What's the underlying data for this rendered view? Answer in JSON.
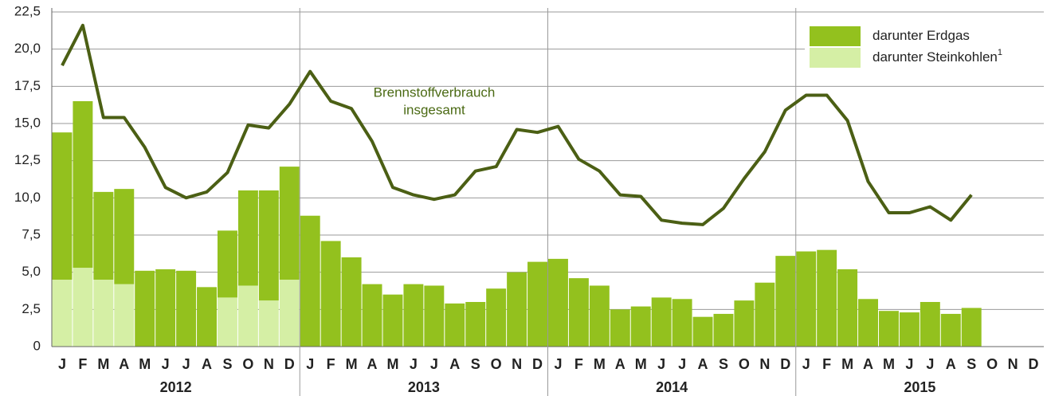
{
  "chart_data": {
    "type": "bar",
    "stack": true,
    "categories": [
      "J",
      "F",
      "M",
      "A",
      "M",
      "J",
      "J",
      "A",
      "S",
      "O",
      "N",
      "D",
      "J",
      "F",
      "M",
      "A",
      "M",
      "J",
      "J",
      "A",
      "S",
      "O",
      "N",
      "D",
      "J",
      "F",
      "M",
      "A",
      "M",
      "J",
      "J",
      "A",
      "S",
      "O",
      "N",
      "D",
      "J",
      "F",
      "M",
      "A",
      "M",
      "J",
      "J",
      "A",
      "S",
      "O",
      "N",
      "D"
    ],
    "years": [
      "2012",
      "2013",
      "2014",
      "2015"
    ],
    "series": [
      {
        "name": "darunter Steinkohlen",
        "color": "#d5efa5",
        "values": [
          4.5,
          5.3,
          4.5,
          4.2,
          null,
          null,
          null,
          null,
          3.3,
          4.1,
          3.1,
          4.5,
          null,
          null,
          null,
          null,
          null,
          null,
          null,
          null,
          null,
          null,
          null,
          null,
          null,
          null,
          null,
          null,
          null,
          null,
          null,
          null,
          null,
          null,
          null,
          null,
          null,
          null,
          null,
          null,
          null,
          null,
          null,
          null,
          null,
          null,
          null,
          null
        ]
      },
      {
        "name": "darunter Erdgas",
        "color": "#93c11e",
        "values": [
          9.9,
          11.2,
          5.9,
          6.4,
          5.1,
          5.2,
          5.1,
          4.0,
          4.5,
          6.4,
          7.4,
          7.6,
          8.8,
          7.1,
          6.0,
          4.2,
          3.5,
          4.2,
          4.1,
          2.9,
          3.0,
          3.9,
          5.0,
          5.7,
          5.9,
          4.6,
          4.1,
          2.5,
          2.7,
          3.3,
          3.2,
          2.0,
          2.2,
          3.1,
          4.3,
          6.1,
          6.4,
          6.5,
          5.2,
          3.2,
          2.4,
          2.3,
          3.0,
          2.2,
          2.6,
          null,
          null,
          null
        ]
      }
    ],
    "legend_footnote": "1",
    "line": {
      "color": "#4b5f14",
      "values": [
        18.9,
        21.6,
        15.4,
        15.4,
        13.4,
        10.7,
        10.0,
        10.4,
        11.7,
        14.9,
        14.7,
        16.3,
        18.5,
        16.5,
        16.0,
        13.8,
        10.7,
        10.2,
        9.9,
        10.2,
        11.8,
        12.1,
        14.6,
        14.4,
        14.8,
        12.6,
        11.8,
        10.2,
        10.1,
        8.5,
        8.3,
        8.2,
        9.3,
        11.3,
        13.1,
        15.9,
        16.9,
        16.9,
        15.2,
        11.1,
        9.0,
        9.0,
        9.4,
        8.5,
        10.2,
        null,
        null,
        null
      ]
    },
    "annotation": [
      "Brennstoffverbrauch",
      "insgesamt"
    ],
    "annotation_color": "#4b6a14",
    "ylim": [
      0,
      22.5
    ],
    "yticks": [
      0,
      {
        "value": 2.5,
        "label": "2,5"
      },
      {
        "value": 5,
        "label": "5,0"
      },
      {
        "value": 7.5,
        "label": "7,5"
      },
      {
        "value": 10,
        "label": "10,0"
      },
      {
        "value": 12.5,
        "label": "12,5"
      },
      {
        "value": 15,
        "label": "15,0"
      },
      {
        "value": 17.5,
        "label": "17,5"
      },
      {
        "value": 20,
        "label": "20,0"
      },
      {
        "value": 22.5,
        "label": "22,5"
      }
    ],
    "grid": true
  }
}
